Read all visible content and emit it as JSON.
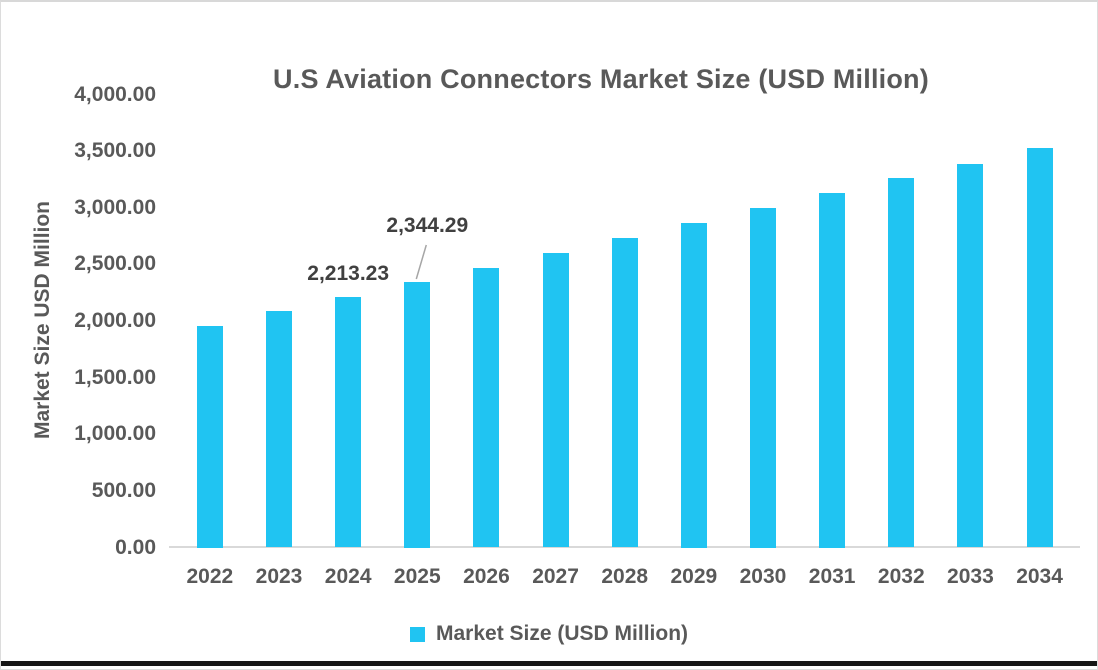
{
  "chart": {
    "title": "U.S Aviation Connectors Market Size (USD Million)",
    "y_axis_title": "Market Size USD Million",
    "legend_label": "Market Size (USD Million)"
  },
  "chart_data": {
    "type": "bar",
    "title": "U.S Aviation Connectors Market Size (USD Million)",
    "xlabel": "",
    "ylabel": "Market Size USD Million",
    "categories": [
      "2022",
      "2023",
      "2024",
      "2025",
      "2026",
      "2027",
      "2028",
      "2029",
      "2030",
      "2031",
      "2032",
      "2033",
      "2034"
    ],
    "values": [
      1960,
      2090,
      2213.23,
      2344.29,
      2470,
      2600,
      2730,
      2865,
      3000,
      3130,
      3260,
      3390,
      3525
    ],
    "ylim": [
      0,
      4000
    ],
    "y_tick_step": 500,
    "y_tick_labels": [
      "0.00",
      "500.00",
      "1,000.00",
      "1,500.00",
      "2,000.00",
      "2,500.00",
      "3,000.00",
      "3,500.00",
      "4,000.00"
    ],
    "grid": false,
    "legend": {
      "position": "bottom",
      "label": "Market Size (USD Million)"
    },
    "data_labels": [
      {
        "index": 2,
        "text": "2,213.23",
        "placement": "above",
        "leader_line": false
      },
      {
        "index": 3,
        "text": "2,344.29",
        "placement": "above-right",
        "leader_line": true
      }
    ],
    "colors": {
      "bar": "#20C4F2",
      "text": "#595959",
      "data_label_text": "#404040",
      "axis_line": "#D9D9D9",
      "leader_line": "#A6A6A6",
      "bottom_strip": "#161616"
    }
  }
}
